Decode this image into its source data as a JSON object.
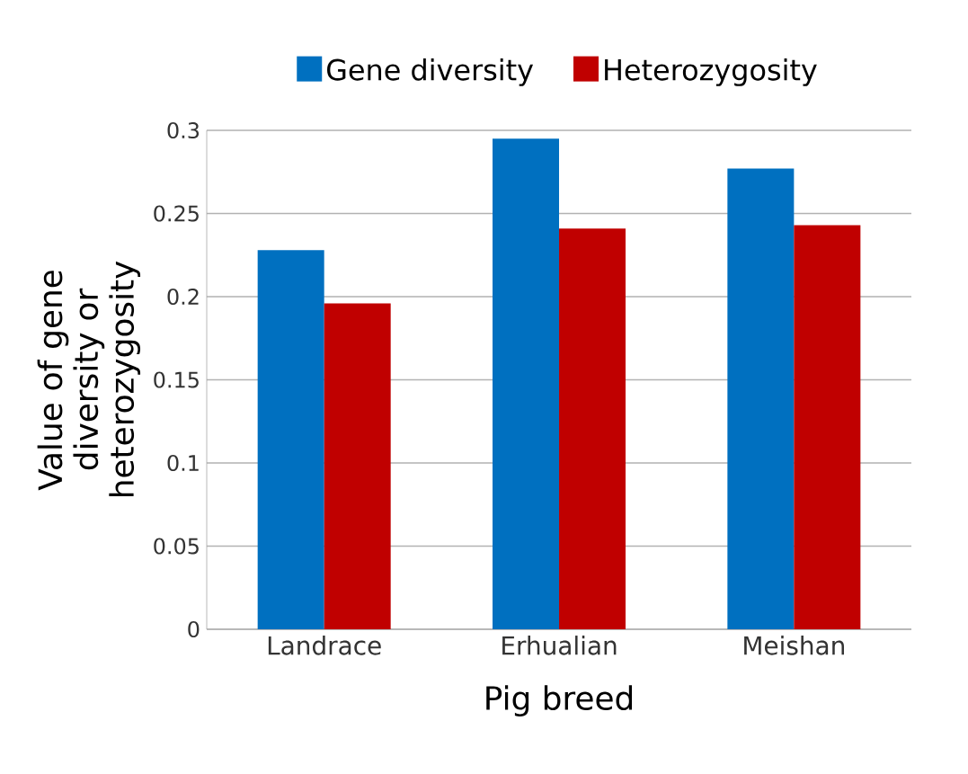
{
  "chart_data": {
    "type": "bar",
    "xlabel": "Pig breed",
    "ylabel": "Value of gene diversity or heterozygosity",
    "categories": [
      "Landrace",
      "Erhualian",
      "Meishan"
    ],
    "series": [
      {
        "name": "Gene diversity",
        "color": "#0070c0",
        "values": [
          0.228,
          0.295,
          0.277
        ]
      },
      {
        "name": "Heterozygosity",
        "color": "#c00000",
        "values": [
          0.196,
          0.241,
          0.243
        ]
      }
    ],
    "ylim": [
      0,
      0.3
    ],
    "yticks": [
      0,
      0.05,
      0.1,
      0.15,
      0.2,
      0.25,
      0.3
    ],
    "grid": "y",
    "legend": "top"
  }
}
